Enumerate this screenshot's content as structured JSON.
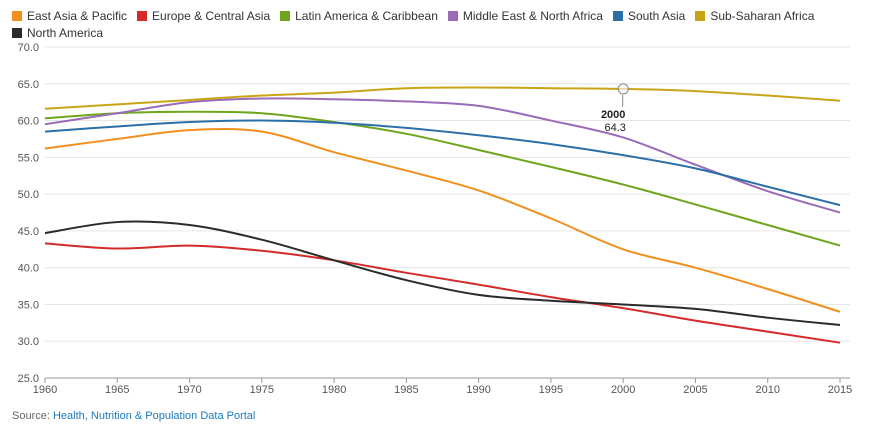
{
  "source": {
    "prefix": "Source:",
    "link_text": "Health, Nutrition & Population Data Portal"
  },
  "chart_data": {
    "type": "line",
    "title": "",
    "xlabel": "",
    "ylabel": "",
    "xlim": [
      1960,
      2015
    ],
    "ylim": [
      25,
      70
    ],
    "grid": true,
    "legend_position": "top",
    "x_ticks": [
      1960,
      1965,
      1970,
      1975,
      1980,
      1985,
      1990,
      1995,
      2000,
      2005,
      2010,
      2015
    ],
    "y_ticks": [
      "25.0",
      "30.0",
      "35.0",
      "40.0",
      "45.0",
      "50.0",
      "55.0",
      "60.0",
      "65.0",
      "70.0"
    ],
    "x": [
      1960,
      1965,
      1970,
      1975,
      1980,
      1985,
      1990,
      1995,
      2000,
      2005,
      2010,
      2015
    ],
    "series": [
      {
        "name": "East Asia & Pacific",
        "color": "#f28f1c",
        "values": [
          56.2,
          57.5,
          58.7,
          58.5,
          55.7,
          53.2,
          50.5,
          46.7,
          42.5,
          40.0,
          37.1,
          34.0
        ]
      },
      {
        "name": "Europe & Central Asia",
        "color": "#d42a2a",
        "values": [
          43.3,
          42.6,
          43.0,
          42.3,
          41.0,
          39.3,
          37.7,
          36.0,
          34.5,
          32.8,
          31.3,
          29.8
        ]
      },
      {
        "name": "Latin America & Caribbean",
        "color": "#6fa51e",
        "values": [
          60.3,
          61.0,
          61.2,
          61.0,
          59.8,
          58.2,
          56.0,
          53.7,
          51.3,
          48.6,
          45.8,
          43.0
        ]
      },
      {
        "name": "Middle East & North Africa",
        "color": "#9a6bb8",
        "values": [
          59.5,
          61.0,
          62.5,
          63.0,
          62.9,
          62.6,
          62.0,
          60.0,
          57.7,
          54.0,
          50.4,
          47.5
        ]
      },
      {
        "name": "South Asia",
        "color": "#2a6fa8",
        "values": [
          58.5,
          59.2,
          59.8,
          60.0,
          59.7,
          59.0,
          58.0,
          56.8,
          55.3,
          53.5,
          51.0,
          48.5
        ]
      },
      {
        "name": "Sub-Saharan Africa",
        "color": "#c9a415",
        "values": [
          61.6,
          62.2,
          62.8,
          63.4,
          63.8,
          64.4,
          64.5,
          64.4,
          64.3,
          64.0,
          63.4,
          62.7
        ]
      },
      {
        "name": "North America",
        "color": "#2b2b2b",
        "values": [
          44.7,
          46.2,
          45.8,
          43.8,
          41.0,
          38.3,
          36.3,
          35.5,
          35.0,
          34.4,
          33.2,
          32.2
        ]
      }
    ],
    "annotation": {
      "series": "Sub-Saharan Africa",
      "x": 2000,
      "y": 64.3,
      "x_label": "2000",
      "y_label": "64.3"
    }
  }
}
